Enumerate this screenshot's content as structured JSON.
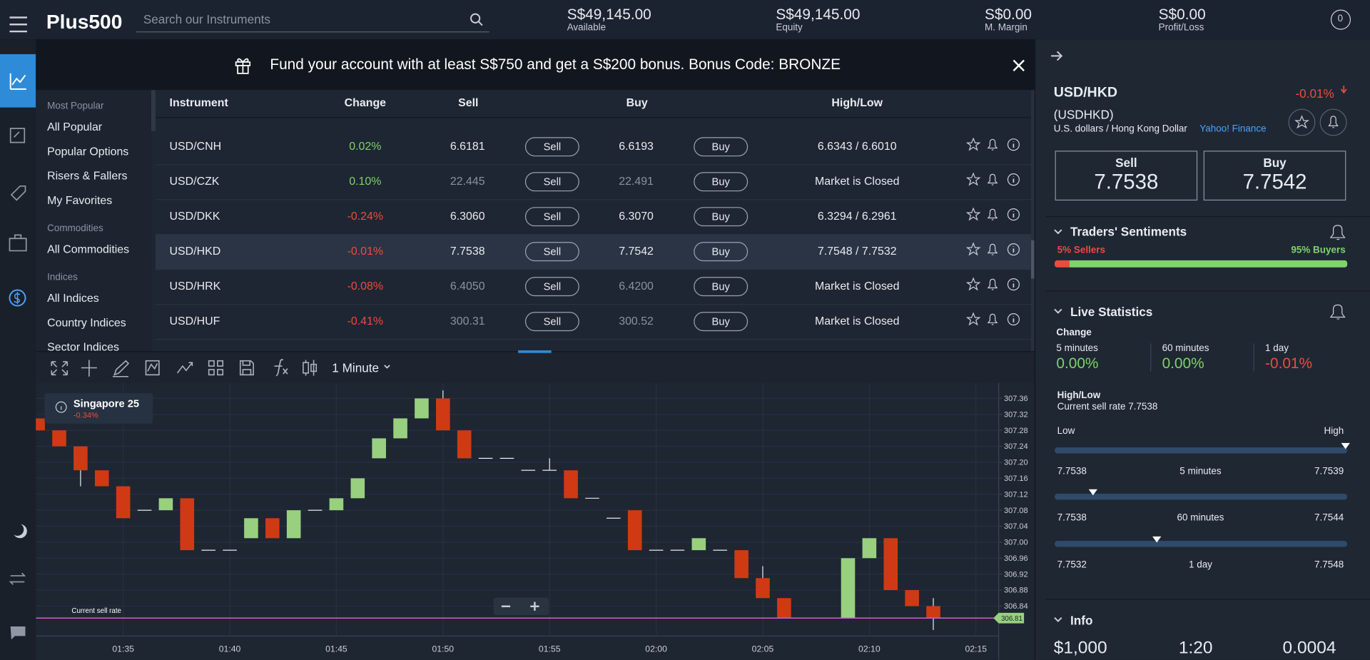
{
  "topbar": {
    "logo": "Plus500",
    "search_placeholder": "Search our Instruments",
    "stats": [
      {
        "value": "S$49,145.00",
        "label": "Available"
      },
      {
        "value": "S$49,145.00",
        "label": "Equity"
      },
      {
        "value": "S$0.00",
        "label": "M. Margin"
      },
      {
        "value": "S$0.00",
        "label": "Profit/Loss"
      }
    ],
    "notifications": "0"
  },
  "banner": {
    "text": "Fund your account with at least S$750 and get a S$200 bonus. Bonus Code: BRONZE"
  },
  "menu": [
    {
      "heading": "Most Popular",
      "items": [
        "All Popular",
        "Popular Options",
        "Risers & Fallers",
        "My Favorites"
      ]
    },
    {
      "heading": "Commodities",
      "items": [
        "All Commodities"
      ]
    },
    {
      "heading": "Indices",
      "items": [
        "All Indices",
        "Country Indices",
        "Sector Indices"
      ]
    }
  ],
  "table": {
    "headers": [
      "Instrument",
      "Change",
      "Sell",
      "Buy",
      "High/Low"
    ],
    "sell_button": "Sell",
    "buy_button": "Buy",
    "rows": [
      {
        "instrument": "USD/CNH",
        "change": "0.02%",
        "sell": "6.6181",
        "buy": "6.6193",
        "high_low": "6.6343 / 6.6010",
        "closed": false,
        "selected": false
      },
      {
        "instrument": "USD/CZK",
        "change": "0.10%",
        "sell": "22.445",
        "buy": "22.491",
        "high_low": "Market is Closed",
        "closed": true,
        "selected": false
      },
      {
        "instrument": "USD/DKK",
        "change": "-0.24%",
        "sell": "6.3060",
        "buy": "6.3070",
        "high_low": "6.3294 / 6.2961",
        "closed": false,
        "selected": false
      },
      {
        "instrument": "USD/HKD",
        "change": "-0.01%",
        "sell": "7.7538",
        "buy": "7.7542",
        "high_low": "7.7548 / 7.7532",
        "closed": false,
        "selected": true
      },
      {
        "instrument": "USD/HRK",
        "change": "-0.08%",
        "sell": "6.4050",
        "buy": "6.4200",
        "high_low": "Market is Closed",
        "closed": true,
        "selected": false
      },
      {
        "instrument": "USD/HUF",
        "change": "-0.41%",
        "sell": "300.31",
        "buy": "300.52",
        "high_low": "Market is Closed",
        "closed": true,
        "selected": false
      }
    ]
  },
  "chart_toolbar": {
    "interval": "1 Minute"
  },
  "chart_data": {
    "type": "candlestick",
    "title": "Singapore 25",
    "subtitle": "-0.34%",
    "categories": [
      null,
      null,
      null,
      null,
      "01:35",
      null,
      null,
      null,
      null,
      "01:40",
      null,
      null,
      null,
      null,
      "01:45",
      null,
      null,
      null,
      null,
      "01:50",
      null,
      null,
      null,
      null,
      "01:55",
      null,
      null,
      null,
      null,
      "02:00",
      null,
      null,
      null,
      null,
      "02:05",
      null,
      null,
      null,
      null,
      "02:10",
      null,
      null,
      null,
      null,
      "02:15"
    ],
    "candles": [
      {
        "open": 307.31,
        "close": 307.28
      },
      {
        "open": 307.28,
        "close": 307.24
      },
      {
        "open": 307.24,
        "close": 307.18,
        "low": 307.14
      },
      {
        "open": 307.18,
        "close": 307.14
      },
      {
        "open": 307.14,
        "close": 307.06
      },
      {
        "open": 307.08,
        "close": 307.08
      },
      {
        "open": 307.08,
        "close": 307.11
      },
      {
        "open": 307.11,
        "close": 306.98
      },
      {
        "open": 306.98,
        "close": 306.98
      },
      {
        "open": 306.98,
        "close": 306.98
      },
      {
        "open": 307.01,
        "close": 307.06
      },
      {
        "open": 307.06,
        "close": 307.01
      },
      {
        "open": 307.01,
        "close": 307.08
      },
      {
        "open": 307.08,
        "close": 307.08
      },
      {
        "open": 307.08,
        "close": 307.11
      },
      {
        "open": 307.11,
        "close": 307.16
      },
      {
        "open": 307.21,
        "close": 307.26
      },
      {
        "open": 307.26,
        "close": 307.31
      },
      {
        "open": 307.31,
        "close": 307.36
      },
      {
        "open": 307.36,
        "close": 307.28,
        "high": 307.38
      },
      {
        "open": 307.28,
        "close": 307.21
      },
      {
        "open": 307.21,
        "close": 307.21
      },
      {
        "open": 307.21,
        "close": 307.21
      },
      {
        "open": 307.18,
        "close": 307.18
      },
      {
        "open": 307.18,
        "close": 307.18,
        "high": 307.21
      },
      {
        "open": 307.18,
        "close": 307.11
      },
      {
        "open": 307.11,
        "close": 307.11
      },
      {
        "open": 307.06,
        "close": 307.06
      },
      {
        "open": 307.08,
        "close": 306.98
      },
      {
        "open": 306.98,
        "close": 306.98
      },
      {
        "open": 306.98,
        "close": 306.98
      },
      {
        "open": 306.98,
        "close": 307.01
      },
      {
        "open": 306.98,
        "close": 306.98
      },
      {
        "open": 306.98,
        "close": 306.91
      },
      {
        "open": 306.91,
        "close": 306.86,
        "high": 306.94
      },
      {
        "open": 306.86,
        "close": 306.81
      },
      null,
      null,
      {
        "open": 306.81,
        "close": 306.96
      },
      {
        "open": 306.96,
        "close": 307.01
      },
      {
        "open": 307.01,
        "close": 306.88
      },
      {
        "open": 306.88,
        "close": 306.84
      },
      {
        "open": 306.84,
        "close": 306.81,
        "high": 306.86,
        "low": 306.78
      },
      null,
      null
    ],
    "ylim": [
      306.765,
      307.395
    ],
    "yticks": [
      307.36,
      307.32,
      307.28,
      307.24,
      {
        "value": 307.2,
        "label": "307.20"
      },
      307.16,
      307.12,
      307.08,
      307.04,
      {
        "value": 307,
        "label": "307.00"
      },
      306.96,
      306.92,
      306.88,
      306.84
    ],
    "current_rate": 306.81,
    "current_rate_label": "Current sell rate",
    "up_color": "#98d07f",
    "down_color": "#cf3a14",
    "current_color": "#d15bd6",
    "grid": true
  },
  "instrument_panel": {
    "symbol": "USD/HKD",
    "change": "-0.01%",
    "code": "(USDHKD)",
    "description": "U.S. dollars / Hong Kong Dollar",
    "source": "Yahoo! Finance",
    "sell_label": "Sell",
    "sell": "7.7538",
    "buy_label": "Buy",
    "buy": "7.7542",
    "sentiments": {
      "title": "Traders' Sentiments",
      "sellers": {
        "value": 5,
        "label": "5% Sellers"
      },
      "buyers": {
        "value": 95,
        "label": "95% Buyers"
      }
    },
    "live_statistics": {
      "title": "Live Statistics",
      "change_heading": "Change",
      "changes": [
        {
          "period": "5 minutes",
          "value": "0.00%"
        },
        {
          "period": "60 minutes",
          "value": "0.00%"
        },
        {
          "period": "1 day",
          "value": "-0.01%"
        }
      ],
      "high_low_heading": "High/Low",
      "current_rate": "Current sell rate 7.7538",
      "low_label": "Low",
      "high_label": "High",
      "ranges": [
        {
          "low": "7.7538",
          "period": "5 minutes",
          "high": "7.7539"
        },
        {
          "low": "7.7538",
          "period": "60 minutes",
          "high": "7.7544"
        },
        {
          "low": "7.7532",
          "period": "1 day",
          "high": "7.7548"
        }
      ]
    },
    "info": {
      "title": "Info",
      "values": [
        "$1,000",
        "1:20",
        "0.0004"
      ]
    }
  }
}
